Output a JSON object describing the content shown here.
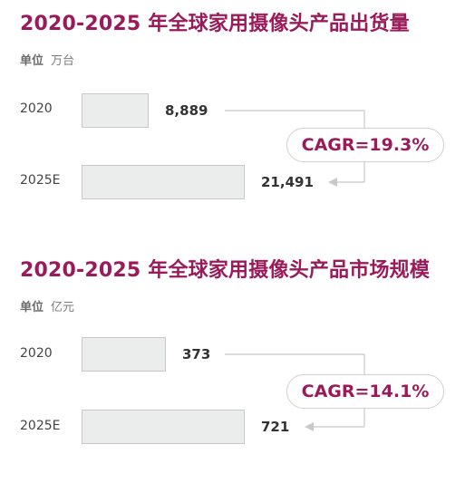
{
  "chart_data": [
    {
      "type": "bar",
      "title": "2020-2025 年全球家用摄像头产品出货量",
      "unit_label": "单位",
      "unit_value": "万台",
      "categories": [
        "2020",
        "2025E"
      ],
      "values": [
        8889,
        21491
      ],
      "value_labels": [
        "8,889",
        "21,491"
      ],
      "cagr": "CAGR=19.3%",
      "orientation": "horizontal",
      "xlim": [
        0,
        21491
      ],
      "grid": false
    },
    {
      "type": "bar",
      "title": "2020-2025 年全球家用摄像头产品市场规模",
      "unit_label": "单位",
      "unit_value": "亿元",
      "categories": [
        "2020",
        "2025E"
      ],
      "values": [
        373,
        721
      ],
      "value_labels": [
        "373",
        "721"
      ],
      "cagr": "CAGR=14.1%",
      "orientation": "horizontal",
      "xlim": [
        0,
        721
      ],
      "grid": false
    }
  ],
  "colors": {
    "title": "#9b1b5a",
    "bar_fill": "#ebecec",
    "bar_border": "#c8c8c8",
    "connector": "#c8c8c8"
  }
}
